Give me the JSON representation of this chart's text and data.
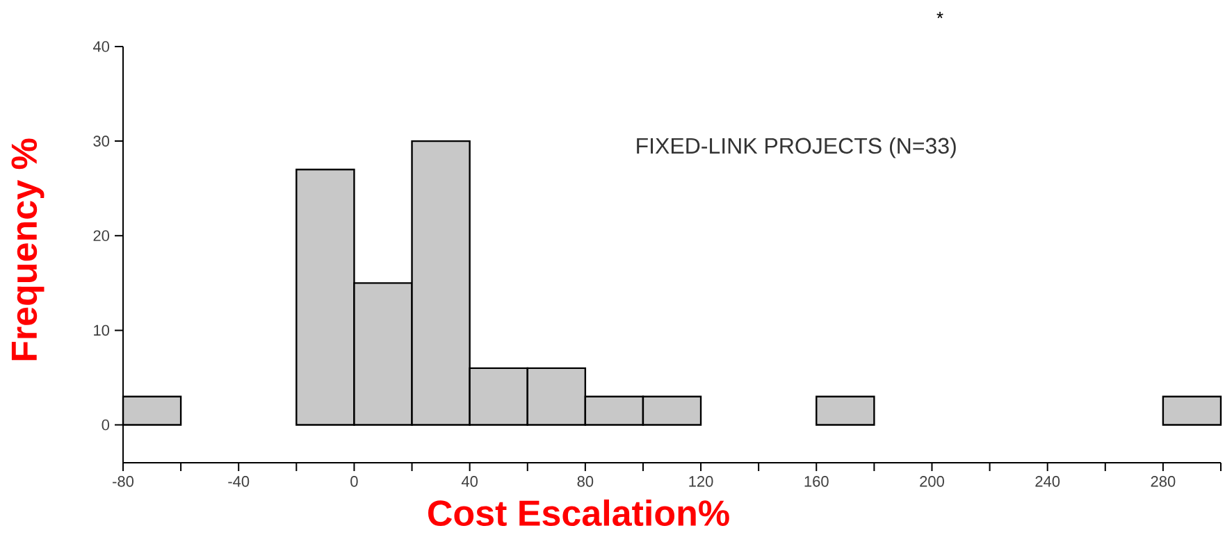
{
  "chart_data": {
    "type": "histogram",
    "xlabel": "Cost Escalation%",
    "ylabel": "Frequency %",
    "annotations": [
      "FIXED-LINK PROJECTS (N=33)",
      "*"
    ],
    "bins": [
      -80,
      -60,
      -40,
      -20,
      0,
      20,
      40,
      60,
      80,
      100,
      120,
      140,
      160,
      180,
      200,
      220,
      240,
      260,
      280,
      300
    ],
    "values": [
      3,
      0,
      0,
      27,
      15,
      30,
      6,
      6,
      3,
      3,
      0,
      0,
      3,
      0,
      0,
      0,
      0,
      0,
      3
    ],
    "color": "#c8c8c8",
    "xlim": [
      -80,
      300
    ],
    "ylim": [
      -4,
      40
    ],
    "xticks": [
      -80,
      {
        "value": -60,
        "label": null
      },
      -40,
      {
        "value": -20,
        "label": null
      },
      0,
      {
        "value": 20,
        "label": null
      },
      40,
      {
        "value": 60,
        "label": null
      },
      80,
      {
        "value": 100,
        "label": null
      },
      120,
      {
        "value": 140,
        "label": null
      },
      160,
      {
        "value": 180,
        "label": null
      },
      200,
      {
        "value": 220,
        "label": null
      },
      240,
      {
        "value": 260,
        "label": null
      },
      280,
      {
        "value": 300,
        "label": null
      }
    ],
    "yticks": [
      0,
      10,
      20,
      30,
      40
    ]
  }
}
